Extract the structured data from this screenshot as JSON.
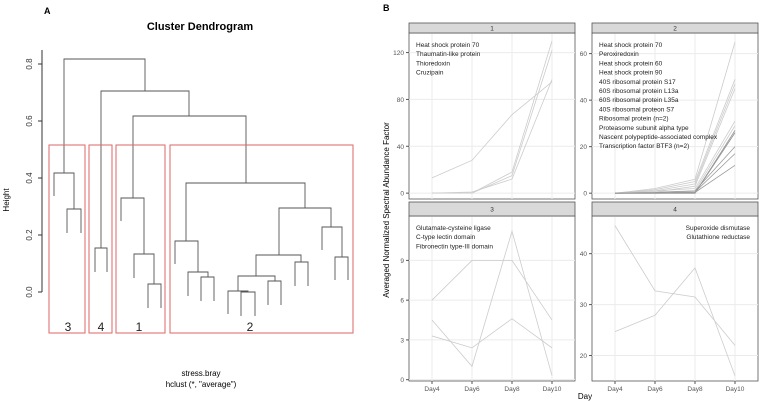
{
  "panel_a": {
    "label": "A",
    "title": "Cluster Dendrogram",
    "ylabel": "Height",
    "xlabel1": "stress.bray",
    "xlabel2": "hclust (*, \"average\")",
    "yticks": [
      "0.0",
      "0.2",
      "0.4",
      "0.6",
      "0.8"
    ],
    "cluster_labels": [
      "3",
      "4",
      "1",
      "2"
    ]
  },
  "chart_data": [
    {
      "type": "line",
      "facet": "1",
      "x": [
        "Day4",
        "Day6",
        "Day8",
        "Day10"
      ],
      "yticks": [
        "0",
        "40",
        "80",
        "120"
      ],
      "ylim": [
        -5,
        135
      ],
      "annotations": [
        "Heat shock protein 70",
        "Thaumatin-like protein",
        "Thioredoxin",
        "Cruzipain"
      ],
      "series": [
        [
          13,
          28,
          67,
          95
        ],
        [
          0,
          0,
          18,
          130
        ],
        [
          0,
          0,
          15,
          122
        ],
        [
          0,
          1,
          12,
          97
        ]
      ]
    },
    {
      "type": "line",
      "facet": "2",
      "x": [
        "Day4",
        "Day6",
        "Day8",
        "Day10"
      ],
      "yticks": [
        "0",
        "20",
        "40",
        "60"
      ],
      "ylim": [
        -2.5,
        68
      ],
      "annotations": [
        "Heat shock protein 70",
        "Peroxiredoxin",
        "Heat shock protein 60",
        "Heat shock protein 90",
        "40S ribosomal protein S17",
        "60S ribosomal protein L13a",
        "60S ribosomal protein L35a",
        "40S ribosomal proteon S7",
        "Ribosomal protein (n=2)",
        "Proteasome subunit alpha type",
        "Nascent polypeptide-associated complex",
        "Transcription factor BTF3 (n=2)"
      ],
      "series": [
        [
          0,
          2,
          6,
          65
        ],
        [
          0,
          1.5,
          5,
          49
        ],
        [
          0,
          1,
          4,
          47
        ],
        [
          0,
          0.5,
          3,
          45
        ],
        [
          0,
          1,
          2,
          31
        ],
        [
          0,
          0.5,
          1,
          29
        ],
        [
          0,
          0,
          0,
          27
        ],
        [
          0,
          0,
          0,
          26
        ],
        [
          0,
          0.3,
          1,
          20
        ],
        [
          0,
          0.2,
          0.5,
          17
        ],
        [
          0,
          0,
          0.3,
          12
        ],
        [
          0,
          0.1,
          0.2,
          26
        ]
      ]
    },
    {
      "type": "line",
      "facet": "3",
      "x": [
        "Day4",
        "Day6",
        "Day8",
        "Day10"
      ],
      "yticks": [
        "0",
        "3",
        "6",
        "9"
      ],
      "ylim": [
        -0.1,
        12.2
      ],
      "annotations": [
        "Glutamate-cysteine ligase",
        "C-type lectin domain",
        "Fibronectin type-III domain"
      ],
      "series": [
        [
          6,
          9,
          9,
          4.5
        ],
        [
          4.5,
          1,
          11.2,
          0.3
        ],
        [
          3.3,
          2.4,
          4.6,
          2.4
        ]
      ]
    },
    {
      "type": "line",
      "facet": "4",
      "x": [
        "Day4",
        "Day6",
        "Day8",
        "Day10"
      ],
      "yticks": [
        "20",
        "30",
        "40"
      ],
      "ylim": [
        15,
        47
      ],
      "annotations": [
        "Superoxide dismutase",
        "Glutathione reductase"
      ],
      "series": [
        [
          45.5,
          32.7,
          31.5,
          22
        ],
        [
          24.7,
          27.9,
          37.2,
          16
        ]
      ]
    }
  ],
  "panel_b": {
    "label": "B",
    "ylabel": "Averaged Normalized Spectral Abundance Factor",
    "xlabel": "Day"
  }
}
